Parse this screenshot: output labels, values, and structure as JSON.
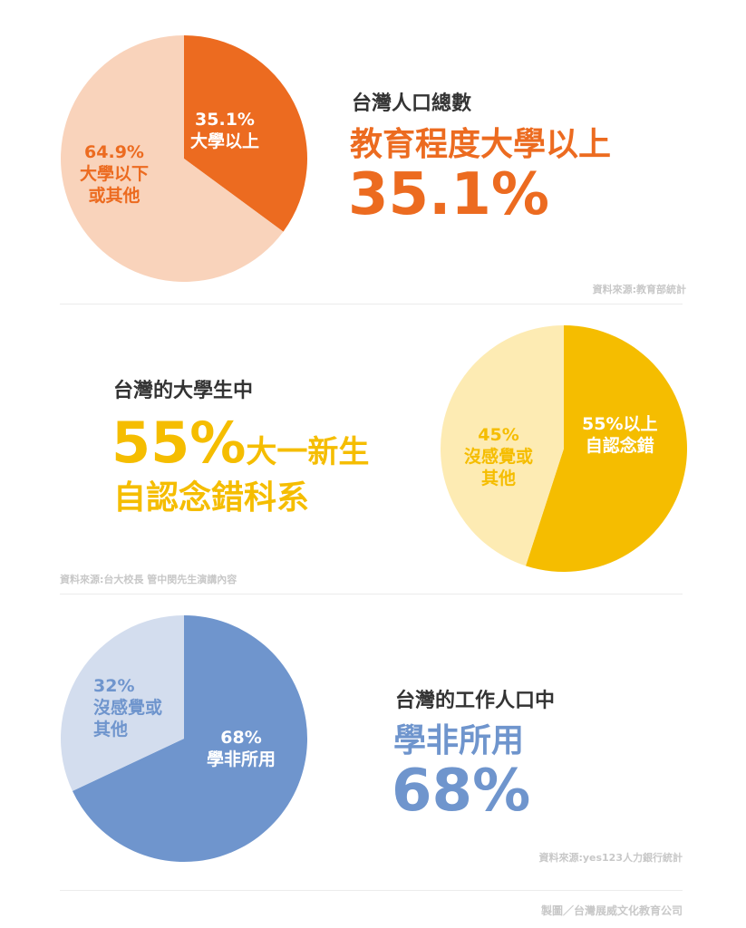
{
  "sections": [
    {
      "subtitle": "台灣人口總數",
      "headline": "教育程度大學以上",
      "big": "35.1%",
      "source": "資料來源:教育部統計",
      "color_main": "#ec6b20",
      "color_rest": "#f9d3bb",
      "slices": [
        {
          "pct": "35.1%",
          "label": "大學以上"
        },
        {
          "pct": "64.9%",
          "label": "大學以下",
          "label2": "或其他"
        }
      ]
    },
    {
      "subtitle": "台灣的大學生中",
      "big": "55%",
      "headline": "大一新生",
      "headline2": "自認念錯科系",
      "source": "資料來源:台大校長 管中閔先生演講內容",
      "color_main": "#f5bd00",
      "color_rest": "#fdebb3",
      "slices": [
        {
          "pct": "55%以上",
          "label": "自認念錯"
        },
        {
          "pct": "45%",
          "label": "沒感覺或",
          "label2": "其他"
        }
      ]
    },
    {
      "subtitle": "台灣的工作人口中",
      "headline": "學非所用",
      "big": "68%",
      "source": "資料來源:yes123人力銀行統計",
      "color_main": "#6f95cd",
      "color_rest": "#d3ddee",
      "slices": [
        {
          "pct": "68%",
          "label": "學非所用"
        },
        {
          "pct": "32%",
          "label": "沒感覺或",
          "label2": "其他"
        }
      ]
    }
  ],
  "footer": "製圖／台灣展威文化教育公司",
  "chart_data": [
    {
      "type": "pie",
      "title": "台灣人口總數 教育程度大學以上",
      "categories": [
        "大學以上",
        "大學以下或其他"
      ],
      "values": [
        35.1,
        64.9
      ]
    },
    {
      "type": "pie",
      "title": "台灣的大學生中 大一新生自認念錯科系",
      "categories": [
        "55%以上自認念錯",
        "沒感覺或其他"
      ],
      "values": [
        55,
        45
      ]
    },
    {
      "type": "pie",
      "title": "台灣的工作人口中 學非所用",
      "categories": [
        "學非所用",
        "沒感覺或其他"
      ],
      "values": [
        68,
        32
      ]
    }
  ]
}
